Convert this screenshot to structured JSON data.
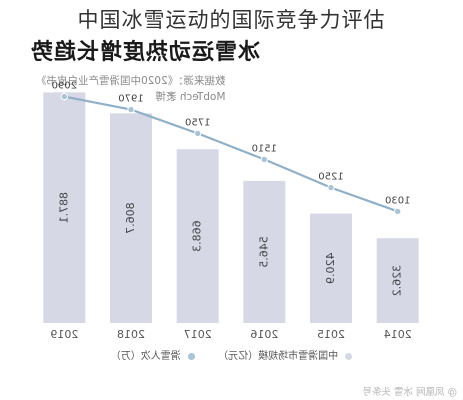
{
  "page": {
    "title": "中国冰雪运动的国际竞争力评估"
  },
  "chart_heading": "冰雪运动热度增长趋势",
  "source_lines": [
    "数据来源：《2020中国滑雪产业白皮书》",
    "MobTech 袤博"
  ],
  "watermark": "@ 凤凰网 冰雪 头条号",
  "colors": {
    "bar": "#d6d8e6",
    "line": "#8fb0c8",
    "point": "#a9c4d6",
    "text": "#333333"
  },
  "chart_data": {
    "type": "bar",
    "title": "冰雪运动热度增长趋势",
    "note": "image appears horizontally mirrored",
    "categories": [
      "2019",
      "2018",
      "2017",
      "2016",
      "2015",
      "2014"
    ],
    "series": [
      {
        "name": "中国滑雪市场规模（亿元）",
        "type": "bar",
        "values": [
          887.1,
          806.7,
          668.3,
          546.5,
          420.9,
          326.2
        ],
        "labels": [
          "887.1",
          "806.7",
          "668.3",
          "546.5",
          "420.9",
          "326.2"
        ]
      },
      {
        "name": "滑雪人次（万）",
        "type": "line",
        "values": [
          2090,
          1970,
          1750,
          1510,
          1250,
          1030
        ],
        "labels": [
          "2090",
          "1970",
          "1750",
          "1510",
          "1250",
          "1030"
        ]
      }
    ],
    "bar_ylim": [
      0,
      1000
    ],
    "line_ylim": [
      0,
      2400
    ],
    "legend_position": "bottom",
    "grid": false
  }
}
